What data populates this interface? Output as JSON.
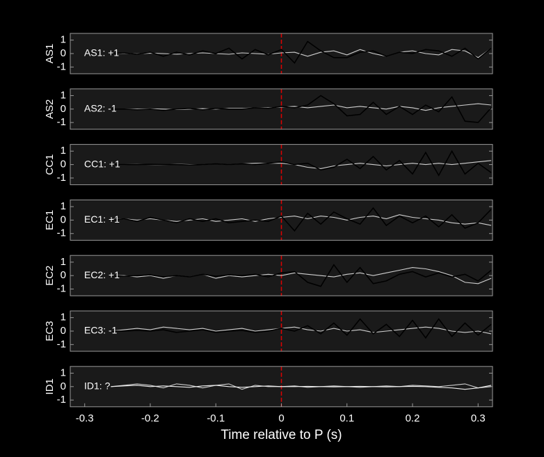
{
  "chart_data": [
    {
      "type": "line",
      "ylabel": "AS1",
      "annotation": {
        "text": "AS1: +1",
        "color": "#c00000"
      },
      "xlim": [
        -0.322,
        0.322
      ],
      "ylim": [
        -1.5,
        1.5
      ],
      "yticks": [
        1,
        0,
        -1
      ],
      "vline": 0,
      "vline_color": "#e00000",
      "x": [
        -0.26,
        -0.24,
        -0.22,
        -0.2,
        -0.18,
        -0.16,
        -0.14,
        -0.12,
        -0.1,
        -0.08,
        -0.06,
        -0.04,
        -0.02,
        0,
        0.02,
        0.04,
        0.06,
        0.08,
        0.1,
        0.12,
        0.14,
        0.16,
        0.18,
        0.2,
        0.22,
        0.24,
        0.26,
        0.28,
        0.3,
        0.32
      ],
      "series": [
        {
          "color": "#d0d0d0",
          "values": [
            0,
            0.02,
            -0.02,
            0.03,
            0,
            -0.05,
            0,
            0.05,
            0,
            -0.05,
            0.05,
            0,
            -0.05,
            0.05,
            0.1,
            -0.2,
            0.1,
            0.2,
            -0.1,
            0.3,
            0,
            -0.2,
            0.1,
            0.2,
            0,
            -0.1,
            0.3,
            0.2,
            -0.3,
            0.4
          ]
        },
        {
          "color": "#000000",
          "values": [
            0,
            0.05,
            -0.05,
            0.1,
            -0.2,
            0.1,
            -0.1,
            0.2,
            0,
            0.4,
            -0.4,
            0.3,
            -0.1,
            0.3,
            -0.7,
            0.9,
            0.2,
            -0.3,
            -0.3,
            0.1,
            0.2,
            -0.2,
            0.1,
            0,
            0.3,
            0.2,
            -0.2,
            0.4,
            -0.4,
            0.4
          ]
        }
      ]
    },
    {
      "type": "line",
      "ylabel": "AS2",
      "annotation": {
        "text": "AS2: -1",
        "color": "#1010b0"
      },
      "xlim": [
        -0.322,
        0.322
      ],
      "ylim": [
        -1.5,
        1.5
      ],
      "yticks": [
        1,
        0,
        -1
      ],
      "vline": 0,
      "vline_color": "#e00000",
      "x": [
        -0.26,
        -0.24,
        -0.22,
        -0.2,
        -0.18,
        -0.16,
        -0.14,
        -0.12,
        -0.1,
        -0.08,
        -0.06,
        -0.04,
        -0.02,
        0,
        0.02,
        0.04,
        0.06,
        0.08,
        0.1,
        0.12,
        0.14,
        0.16,
        0.18,
        0.2,
        0.22,
        0.24,
        0.26,
        0.28,
        0.3,
        0.32
      ],
      "series": [
        {
          "color": "#d0d0d0",
          "values": [
            0,
            0,
            0,
            0.02,
            0,
            -0.03,
            0,
            0.03,
            0,
            0.05,
            0.05,
            0.1,
            0.1,
            0.15,
            0.2,
            0.1,
            0.2,
            0.3,
            0.1,
            0.2,
            0.1,
            0,
            0.2,
            0.1,
            -0.1,
            0.1,
            0.2,
            0.3,
            0.4,
            0.3
          ]
        },
        {
          "color": "#000000",
          "values": [
            0,
            0,
            -0.05,
            0,
            -0.1,
            0,
            0.05,
            -0.05,
            0.05,
            0,
            0,
            0.1,
            0.05,
            0.2,
            0.1,
            0.3,
            1.0,
            0.4,
            -0.5,
            -0.4,
            0.5,
            -0.4,
            0.2,
            -0.4,
            0.3,
            -0.2,
            0.9,
            -0.9,
            -1.0,
            0.1
          ]
        }
      ]
    },
    {
      "type": "line",
      "ylabel": "CC1",
      "annotation": {
        "text": "CC1: +1",
        "color": "#c00000"
      },
      "xlim": [
        -0.322,
        0.322
      ],
      "ylim": [
        -1.5,
        1.5
      ],
      "yticks": [
        1,
        0,
        -1
      ],
      "vline": 0,
      "vline_color": "#e00000",
      "x": [
        -0.26,
        -0.24,
        -0.22,
        -0.2,
        -0.18,
        -0.16,
        -0.14,
        -0.12,
        -0.1,
        -0.08,
        -0.06,
        -0.04,
        -0.02,
        0,
        0.02,
        0.04,
        0.06,
        0.08,
        0.1,
        0.12,
        0.14,
        0.16,
        0.18,
        0.2,
        0.22,
        0.24,
        0.26,
        0.28,
        0.3,
        0.32
      ],
      "series": [
        {
          "color": "#d0d0d0",
          "values": [
            0,
            0,
            0.02,
            0,
            -0.02,
            0.03,
            0,
            0,
            0.05,
            0,
            0.05,
            0.1,
            0.1,
            0.1,
            0,
            -0.2,
            -0.3,
            -0.1,
            0,
            0.1,
            0,
            -0.1,
            0,
            0.1,
            0,
            0.1,
            0,
            0.1,
            0.2,
            0.3
          ]
        },
        {
          "color": "#000000",
          "values": [
            0,
            0,
            0,
            0.02,
            0,
            0,
            -0.03,
            0,
            0.05,
            0,
            0.05,
            0,
            0.1,
            0.2,
            0,
            0.1,
            -0.4,
            -0.2,
            0.4,
            -0.3,
            0.6,
            -0.4,
            0.3,
            -0.7,
            0.9,
            -0.8,
            1.0,
            -0.7,
            0.1,
            -0.6
          ]
        }
      ]
    },
    {
      "type": "line",
      "ylabel": "EC1",
      "annotation": {
        "text": "EC1: +1",
        "color": "#c00000"
      },
      "xlim": [
        -0.322,
        0.322
      ],
      "ylim": [
        -1.5,
        1.5
      ],
      "yticks": [
        1,
        0,
        -1
      ],
      "vline": 0,
      "vline_color": "#e00000",
      "x": [
        -0.26,
        -0.24,
        -0.22,
        -0.2,
        -0.18,
        -0.16,
        -0.14,
        -0.12,
        -0.1,
        -0.08,
        -0.06,
        -0.04,
        -0.02,
        0,
        0.02,
        0.04,
        0.06,
        0.08,
        0.1,
        0.12,
        0.14,
        0.16,
        0.18,
        0.2,
        0.22,
        0.24,
        0.26,
        0.28,
        0.3,
        0.32
      ],
      "series": [
        {
          "color": "#d0d0d0",
          "values": [
            0.05,
            0.1,
            0,
            0.1,
            0,
            -0.1,
            0,
            0.1,
            -0.1,
            0,
            0.1,
            -0.1,
            0.1,
            0.2,
            0.3,
            0.1,
            0.3,
            0.2,
            0,
            0.2,
            0.3,
            0.1,
            0.4,
            0.2,
            0.1,
            0,
            -0.2,
            -0.3,
            -0.2,
            -0.4
          ]
        },
        {
          "color": "#000000",
          "values": [
            0,
            0.1,
            -0.1,
            0.2,
            0,
            -0.2,
            0.1,
            -0.1,
            0.1,
            -0.2,
            -0.1,
            0,
            -0.1,
            0.3,
            -0.8,
            0.5,
            -0.3,
            0.6,
            0.1,
            -0.3,
            0.9,
            -0.4,
            0.3,
            -0.2,
            0.3,
            -0.5,
            0.4,
            -0.6,
            -0.2,
            0.8
          ]
        }
      ]
    },
    {
      "type": "line",
      "ylabel": "EC2",
      "annotation": {
        "text": "EC2: +1",
        "color": "#c00000"
      },
      "xlim": [
        -0.322,
        0.322
      ],
      "ylim": [
        -1.5,
        1.5
      ],
      "yticks": [
        1,
        0,
        -1
      ],
      "vline": 0,
      "vline_color": "#e00000",
      "x": [
        -0.26,
        -0.24,
        -0.22,
        -0.2,
        -0.18,
        -0.16,
        -0.14,
        -0.12,
        -0.1,
        -0.08,
        -0.06,
        -0.04,
        -0.02,
        0,
        0.02,
        0.04,
        0.06,
        0.08,
        0.1,
        0.12,
        0.14,
        0.16,
        0.18,
        0.2,
        0.22,
        0.24,
        0.26,
        0.28,
        0.3,
        0.32
      ],
      "series": [
        {
          "color": "#d0d0d0",
          "values": [
            0,
            0,
            -0.1,
            0,
            -0.2,
            0,
            -0.1,
            0.1,
            -0.2,
            0,
            -0.1,
            0,
            0.1,
            0,
            0.2,
            0.1,
            0,
            -0.1,
            0.1,
            0.2,
            0,
            0.2,
            0.4,
            0.6,
            0.5,
            0.3,
            0,
            -0.5,
            -0.6,
            -0.2
          ]
        },
        {
          "color": "#000000",
          "values": [
            0,
            -0.05,
            0,
            0.05,
            -0.1,
            0,
            -0.1,
            0.1,
            -0.05,
            0.05,
            0,
            0.1,
            -0.1,
            0.2,
            0.3,
            -0.5,
            -0.8,
            0.8,
            -0.5,
            0.6,
            -0.6,
            -0.4,
            0.1,
            0.3,
            -0.1,
            0.2,
            -0.1,
            0.1,
            -0.4,
            0.4
          ]
        }
      ]
    },
    {
      "type": "line",
      "ylabel": "EC3",
      "annotation": {
        "text": "EC3: -1",
        "color": "#1010b0"
      },
      "xlim": [
        -0.322,
        0.322
      ],
      "ylim": [
        -1.5,
        1.5
      ],
      "yticks": [
        1,
        0,
        -1
      ],
      "vline": 0,
      "vline_color": "#e00000",
      "x": [
        -0.26,
        -0.24,
        -0.22,
        -0.2,
        -0.18,
        -0.16,
        -0.14,
        -0.12,
        -0.1,
        -0.08,
        -0.06,
        -0.04,
        -0.02,
        0,
        0.02,
        0.04,
        0.06,
        0.08,
        0.1,
        0.12,
        0.14,
        0.16,
        0.18,
        0.2,
        0.22,
        0.24,
        0.26,
        0.28,
        0.3,
        0.32
      ],
      "series": [
        {
          "color": "#d0d0d0",
          "values": [
            0,
            0.1,
            0.2,
            0.1,
            0.3,
            0.2,
            0.1,
            0.2,
            0,
            0.1,
            0.2,
            0,
            0.1,
            0.2,
            0.3,
            0.1,
            0,
            0.2,
            0,
            0.1,
            -0.1,
            0,
            0.1,
            0.2,
            0.3,
            0.2,
            0,
            -0.1,
            0,
            -0.2
          ]
        },
        {
          "color": "#000000",
          "values": [
            0,
            0,
            0.05,
            0,
            0.1,
            -0.1,
            0,
            0.1,
            -0.1,
            0,
            0.05,
            -0.1,
            0,
            0.2,
            0,
            0.4,
            -0.2,
            0.6,
            -0.3,
            0.9,
            -0.2,
            0.5,
            -0.4,
            0.8,
            -0.5,
            0.9,
            -0.4,
            0.6,
            -0.3,
            0.5
          ]
        }
      ]
    },
    {
      "type": "line",
      "ylabel": "ID1",
      "annotation": {
        "text": "ID1: ?",
        "color": "#a0a0a0"
      },
      "xlim": [
        -0.322,
        0.322
      ],
      "ylim": [
        -1.5,
        1.5
      ],
      "yticks": [
        1,
        0,
        -1
      ],
      "vline": 0,
      "vline_color": "#e00000",
      "xlabel": "Time relative to P (s)",
      "xticks": [
        -0.3,
        -0.2,
        -0.1,
        0,
        0.1,
        0.2,
        0.3
      ],
      "x": [
        -0.26,
        -0.24,
        -0.22,
        -0.2,
        -0.18,
        -0.16,
        -0.14,
        -0.12,
        -0.1,
        -0.08,
        -0.06,
        -0.04,
        -0.02,
        0,
        0.02,
        0.04,
        0.06,
        0.08,
        0.1,
        0.12,
        0.14,
        0.16,
        0.18,
        0.2,
        0.22,
        0.24,
        0.26,
        0.28,
        0.3,
        0.32
      ],
      "series": [
        {
          "color": "#d0d0d0",
          "values": [
            0,
            0.1,
            0.2,
            0.1,
            -0.1,
            0.2,
            0.1,
            -0.1,
            0.1,
            0.2,
            -0.2,
            0.1,
            0,
            0,
            0.05,
            -0.05,
            0,
            0.05,
            0,
            -0.05,
            0,
            0.05,
            0,
            0.1,
            0.05,
            0,
            0.1,
            0.2,
            -0.1,
            0
          ]
        },
        {
          "color": "#f0f0f0",
          "values": [
            0,
            0.05,
            0.1,
            0,
            0.05,
            0,
            -0.05,
            0.05,
            0.1,
            0,
            -0.05,
            0,
            0.05,
            0,
            0,
            0.02,
            0,
            -0.02,
            0,
            0.02,
            0,
            -0.02,
            0,
            0.02,
            0,
            -0.05,
            -0.1,
            -0.2,
            -0.1,
            0.1
          ]
        }
      ]
    }
  ]
}
